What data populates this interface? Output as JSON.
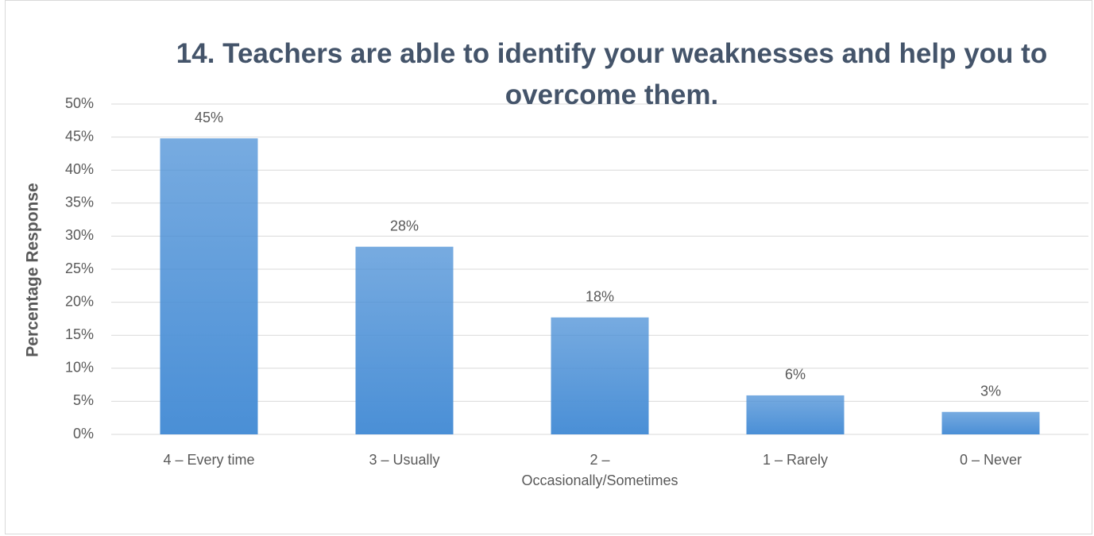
{
  "chart_data": {
    "type": "bar",
    "title": "14. Teachers are able to identify your weaknesses and help you to overcome them.",
    "y_label": "Percentage Response",
    "categories": [
      "4 – Every time",
      "3 – Usually",
      "2 – Occasionally/Sometimes",
      "1 – Rarely",
      "0 – Never"
    ],
    "values": [
      44.8,
      28.4,
      17.7,
      5.9,
      3.4
    ],
    "value_labels": [
      "45%",
      "28%",
      "18%",
      "6%",
      "3%"
    ],
    "color": "#4a8fd6",
    "ylim": [
      0,
      50
    ],
    "yticks": [
      {
        "value": 0,
        "label": "0%"
      },
      {
        "value": 5,
        "label": "5%"
      },
      {
        "value": 10,
        "label": "10%"
      },
      {
        "value": 15,
        "label": "15%"
      },
      {
        "value": 20,
        "label": "20%"
      },
      {
        "value": 25,
        "label": "25%"
      },
      {
        "value": 30,
        "label": "30%"
      },
      {
        "value": 35,
        "label": "35%"
      },
      {
        "value": 40,
        "label": "40%"
      },
      {
        "value": 45,
        "label": "45%"
      },
      {
        "value": 50,
        "label": "50%"
      }
    ],
    "grid": true
  }
}
